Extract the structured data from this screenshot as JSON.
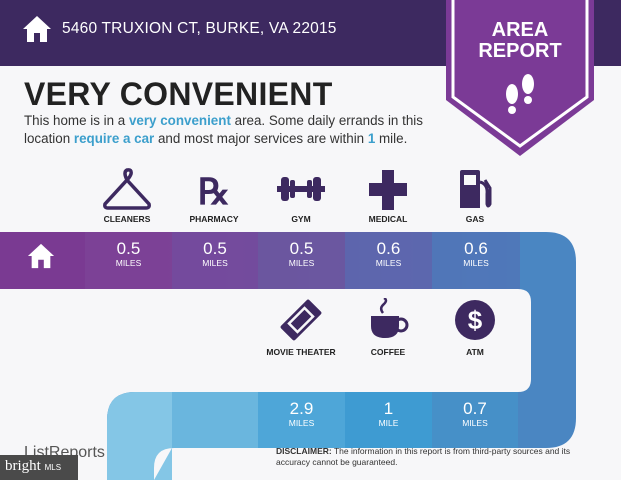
{
  "header": {
    "address": "5460 TRUXION CT, BURKE, VA 22015",
    "badge_line1": "AREA",
    "badge_line2": "REPORT"
  },
  "title": "VERY CONVENIENT",
  "description": {
    "p1": "This home is in a ",
    "h1": "very convenient",
    "p2": " area. Some daily errands in this location ",
    "h2": "require a car",
    "p3": " and most major services are within ",
    "h3": "1",
    "p4": " mile."
  },
  "row1": [
    {
      "label": "CLEANERS",
      "icon": "hanger-icon",
      "value": "0.5",
      "unit": "MILES"
    },
    {
      "label": "PHARMACY",
      "icon": "rx-icon",
      "value": "0.5",
      "unit": "MILES"
    },
    {
      "label": "GYM",
      "icon": "dumbbell-icon",
      "value": "0.5",
      "unit": "MILES"
    },
    {
      "label": "MEDICAL",
      "icon": "cross-icon",
      "value": "0.6",
      "unit": "MILES"
    },
    {
      "label": "GAS",
      "icon": "gas-pump-icon",
      "value": "0.6",
      "unit": "MILES"
    }
  ],
  "row2": [
    {
      "label": "MOVIE THEATER",
      "icon": "ticket-icon",
      "value": "2.9",
      "unit": "MILES"
    },
    {
      "label": "COFFEE",
      "icon": "coffee-icon",
      "value": "1",
      "unit": "MILE"
    },
    {
      "label": "ATM",
      "icon": "dollar-icon",
      "value": "0.7",
      "unit": "MILES"
    }
  ],
  "footer": {
    "logo": "ListReports",
    "disclaimer_label": "DISCLAIMER:",
    "disclaimer": " The information in this report is from third-party sources and its accuracy cannot be guaranteed.",
    "watermark": "bright",
    "watermark_small": "MLS"
  },
  "colors": {
    "header": "#3d2960",
    "badge": "#7b3a96",
    "highlight": "#3c9fcc",
    "icon": "#3d2960"
  }
}
